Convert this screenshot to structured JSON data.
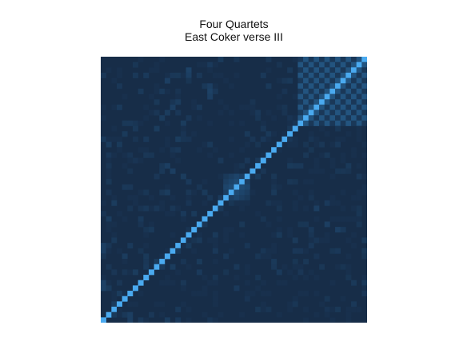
{
  "chart_data": {
    "type": "heatmap",
    "title": "Four Quartets",
    "subtitle": "East Coker verse III",
    "xlabel": "",
    "ylabel": "",
    "grid": false,
    "legend": "none",
    "matrix_size": 50,
    "diagonal": "anti-diagonal (bottom-left to top-right)",
    "value_range": [
      0,
      1
    ],
    "colors": {
      "background": "#172d48",
      "mid": "#1f4a72",
      "high": "#4aaaf0"
    },
    "high_similarity_blocks": [
      {
        "rows": [
          0,
          12
        ],
        "cols": [
          37,
          49
        ],
        "pattern": "checkerboard",
        "strength": 0.55
      },
      {
        "rows": [
          22,
          26
        ],
        "cols": [
          23,
          27
        ],
        "pattern": "cluster",
        "strength": 0.6
      }
    ],
    "scattered_cells": [
      {
        "r": 2,
        "c": 16,
        "v": 0.35
      },
      {
        "r": 3,
        "c": 16,
        "v": 0.3
      },
      {
        "r": 4,
        "c": 12,
        "v": 0.3
      },
      {
        "r": 5,
        "c": 20,
        "v": 0.3
      },
      {
        "r": 6,
        "c": 20,
        "v": 0.35
      },
      {
        "r": 7,
        "c": 20,
        "v": 0.3
      },
      {
        "r": 8,
        "c": 14,
        "v": 0.25
      },
      {
        "r": 9,
        "c": 13,
        "v": 0.3
      },
      {
        "r": 10,
        "c": 12,
        "v": 0.25
      },
      {
        "r": 11,
        "c": 11,
        "v": 0.25
      },
      {
        "r": 12,
        "c": 15,
        "v": 0.25
      },
      {
        "r": 13,
        "c": 10,
        "v": 0.25
      },
      {
        "r": 15,
        "c": 14,
        "v": 0.25
      },
      {
        "r": 16,
        "c": 1,
        "v": 0.25
      },
      {
        "r": 20,
        "c": 12,
        "v": 0.3
      },
      {
        "r": 21,
        "c": 13,
        "v": 0.3
      },
      {
        "r": 22,
        "c": 15,
        "v": 0.25
      },
      {
        "r": 25,
        "c": 12,
        "v": 0.25
      },
      {
        "r": 27,
        "c": 2,
        "v": 0.25
      },
      {
        "r": 28,
        "c": 40,
        "v": 0.3
      },
      {
        "r": 30,
        "c": 1,
        "v": 0.25
      },
      {
        "r": 31,
        "c": 42,
        "v": 0.3
      },
      {
        "r": 32,
        "c": 44,
        "v": 0.3
      },
      {
        "r": 35,
        "c": 0,
        "v": 0.3
      },
      {
        "r": 36,
        "c": 0,
        "v": 0.3
      },
      {
        "r": 37,
        "c": 4,
        "v": 0.25
      },
      {
        "r": 38,
        "c": 10,
        "v": 0.25
      },
      {
        "r": 39,
        "c": 13,
        "v": 0.25
      },
      {
        "r": 40,
        "c": 6,
        "v": 0.25
      },
      {
        "r": 42,
        "c": 0,
        "v": 0.35
      },
      {
        "r": 43,
        "c": 0,
        "v": 0.35
      },
      {
        "r": 44,
        "c": 3,
        "v": 0.25
      },
      {
        "r": 46,
        "c": 2,
        "v": 0.25
      },
      {
        "r": 48,
        "c": 5,
        "v": 0.3
      },
      {
        "r": 49,
        "c": 5,
        "v": 0.3
      },
      {
        "r": 49,
        "c": 12,
        "v": 0.25
      }
    ]
  }
}
